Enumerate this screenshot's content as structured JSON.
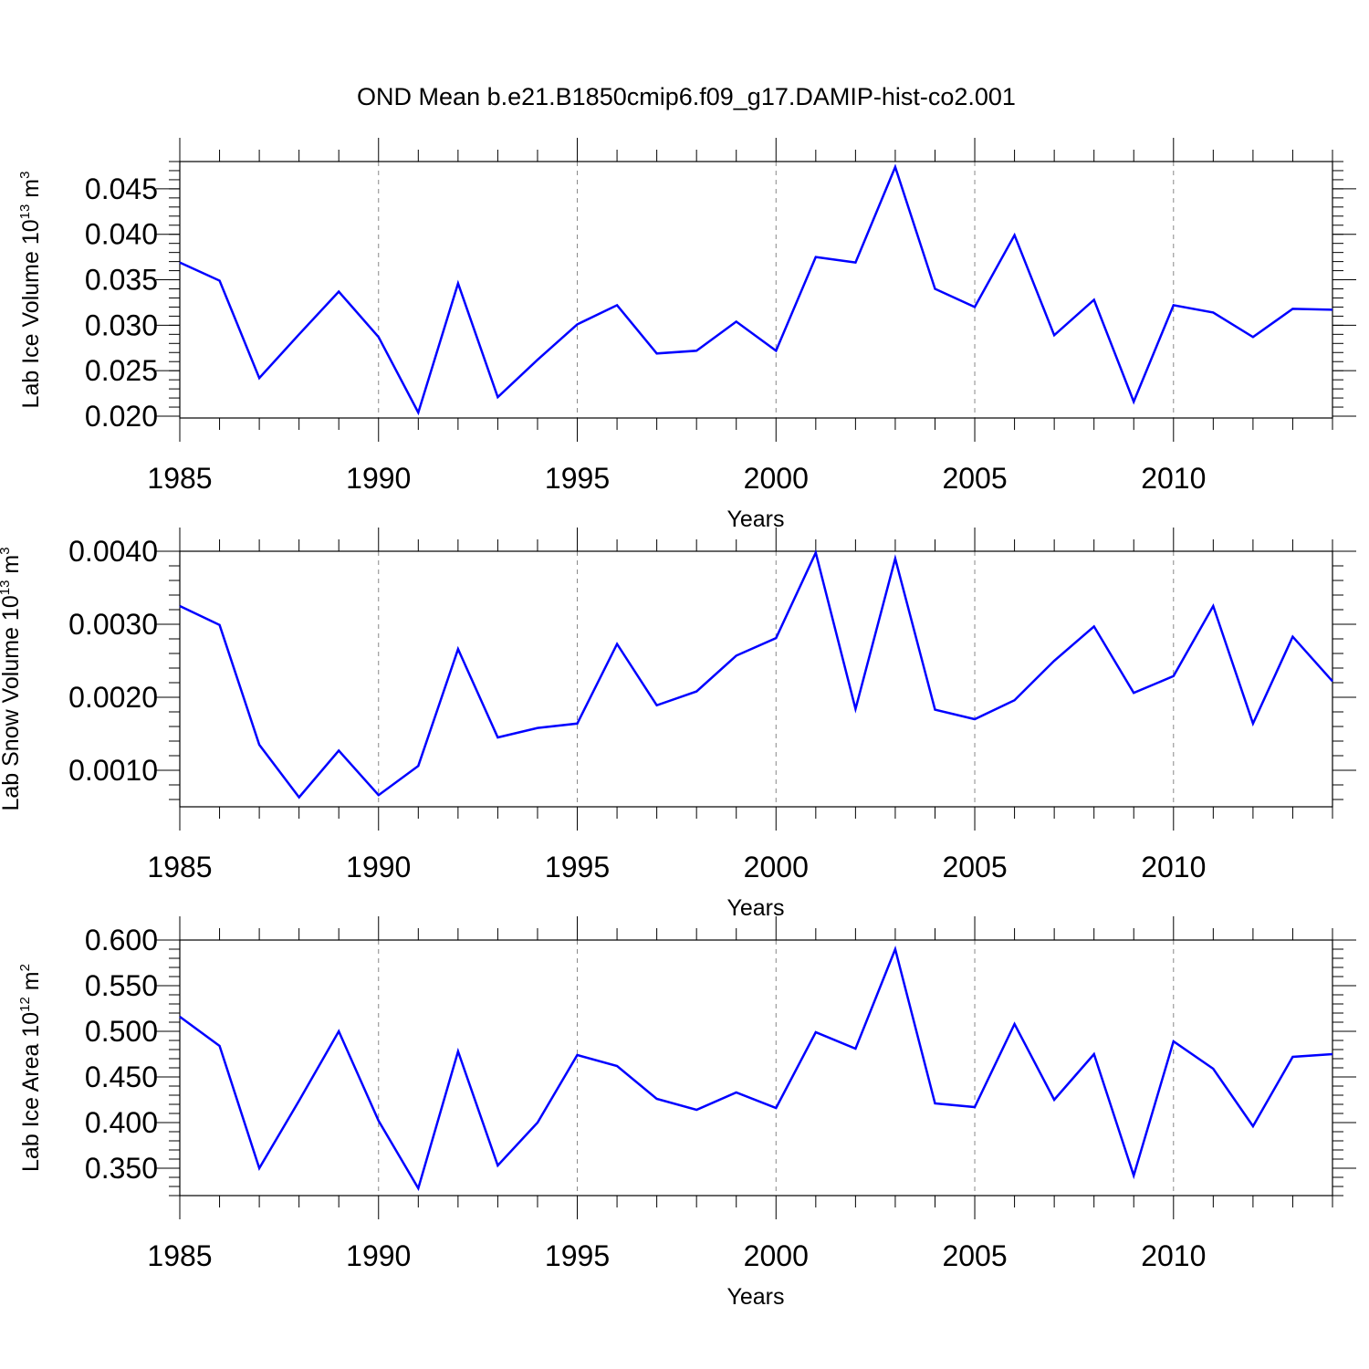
{
  "title": "OND Mean b.e21.B1850cmip6.f09_g17.DAMIP-hist-co2.001",
  "chart_data": [
    {
      "type": "line",
      "title": "OND Mean b.e21.B1850cmip6.f09_g17.DAMIP-hist-co2.001",
      "xlabel": "Years",
      "ylabel": {
        "base": "Lab Ice Volume 10",
        "exp": "13",
        "unit": " m",
        "unit_exp": "3"
      },
      "xlim": [
        1985,
        2014
      ],
      "ylim": [
        0.0198,
        0.048
      ],
      "xticks": [
        1985,
        1990,
        1995,
        2000,
        2005,
        2010
      ],
      "yticks": [
        0.02,
        0.025,
        0.03,
        0.035,
        0.04,
        0.045
      ],
      "ytick_labels": [
        "0.020",
        "0.025",
        "0.030",
        "0.035",
        "0.040",
        "0.045"
      ],
      "y_minor_step": 0.001,
      "grid": "vertical-dashed-at-major-x",
      "color": "#0000ff",
      "x": [
        1985,
        1986,
        1987,
        1988,
        1989,
        1990,
        1991,
        1992,
        1993,
        1994,
        1995,
        1996,
        1997,
        1998,
        1999,
        2000,
        2001,
        2002,
        2003,
        2004,
        2005,
        2006,
        2007,
        2008,
        2009,
        2010,
        2011,
        2012,
        2013,
        2014
      ],
      "values": [
        0.0369,
        0.0349,
        0.0242,
        0.029,
        0.0337,
        0.0287,
        0.0204,
        0.0346,
        0.0221,
        0.0262,
        0.0301,
        0.0322,
        0.0269,
        0.0272,
        0.0304,
        0.0272,
        0.0375,
        0.0369,
        0.0474,
        0.034,
        0.032,
        0.0399,
        0.0289,
        0.0328,
        0.0216,
        0.0322,
        0.0314,
        0.0287,
        0.0318,
        0.0317
      ]
    },
    {
      "type": "line",
      "xlabel": "Years",
      "ylabel": {
        "base": "Lab Snow Volume 10",
        "exp": "13",
        "unit": " m",
        "unit_exp": "3"
      },
      "xlim": [
        1985,
        2014
      ],
      "ylim": [
        0.0005,
        0.004
      ],
      "xticks": [
        1985,
        1990,
        1995,
        2000,
        2005,
        2010
      ],
      "yticks": [
        0.001,
        0.002,
        0.003,
        0.004
      ],
      "ytick_labels": [
        "0.0010",
        "0.0020",
        "0.0030",
        "0.0040"
      ],
      "y_minor_step": 0.0002,
      "grid": "vertical-dashed-at-major-x",
      "color": "#0000ff",
      "x": [
        1985,
        1986,
        1987,
        1988,
        1989,
        1990,
        1991,
        1992,
        1993,
        1994,
        1995,
        1996,
        1997,
        1998,
        1999,
        2000,
        2001,
        2002,
        2003,
        2004,
        2005,
        2006,
        2007,
        2008,
        2009,
        2010,
        2011,
        2012,
        2013,
        2014
      ],
      "values": [
        0.00325,
        0.00299,
        0.00135,
        0.00063,
        0.00127,
        0.00066,
        0.00106,
        0.00266,
        0.00145,
        0.00158,
        0.00164,
        0.00273,
        0.00189,
        0.00208,
        0.00257,
        0.00281,
        0.00398,
        0.00184,
        0.0039,
        0.00183,
        0.0017,
        0.00196,
        0.0025,
        0.00297,
        0.00206,
        0.00229,
        0.00325,
        0.00164,
        0.00283,
        0.00222
      ]
    },
    {
      "type": "line",
      "xlabel": "Years",
      "ylabel": {
        "base": "Lab Ice Area 10",
        "exp": "12",
        "unit": " m",
        "unit_exp": "2"
      },
      "xlim": [
        1985,
        2014
      ],
      "ylim": [
        0.32,
        0.6
      ],
      "xticks": [
        1985,
        1990,
        1995,
        2000,
        2005,
        2010
      ],
      "yticks": [
        0.35,
        0.4,
        0.45,
        0.5,
        0.55,
        0.6
      ],
      "ytick_labels": [
        "0.350",
        "0.400",
        "0.450",
        "0.500",
        "0.550",
        "0.600"
      ],
      "y_minor_step": 0.01,
      "grid": "vertical-dashed-at-major-x",
      "color": "#0000ff",
      "x": [
        1985,
        1986,
        1987,
        1988,
        1989,
        1990,
        1991,
        1992,
        1993,
        1994,
        1995,
        1996,
        1997,
        1998,
        1999,
        2000,
        2001,
        2002,
        2003,
        2004,
        2005,
        2006,
        2007,
        2008,
        2009,
        2010,
        2011,
        2012,
        2013,
        2014
      ],
      "values": [
        0.516,
        0.484,
        0.35,
        0.424,
        0.5,
        0.402,
        0.328,
        0.478,
        0.353,
        0.4,
        0.474,
        0.462,
        0.426,
        0.414,
        0.433,
        0.416,
        0.499,
        0.481,
        0.59,
        0.421,
        0.417,
        0.508,
        0.425,
        0.475,
        0.342,
        0.489,
        0.459,
        0.396,
        0.472,
        0.475
      ]
    }
  ]
}
